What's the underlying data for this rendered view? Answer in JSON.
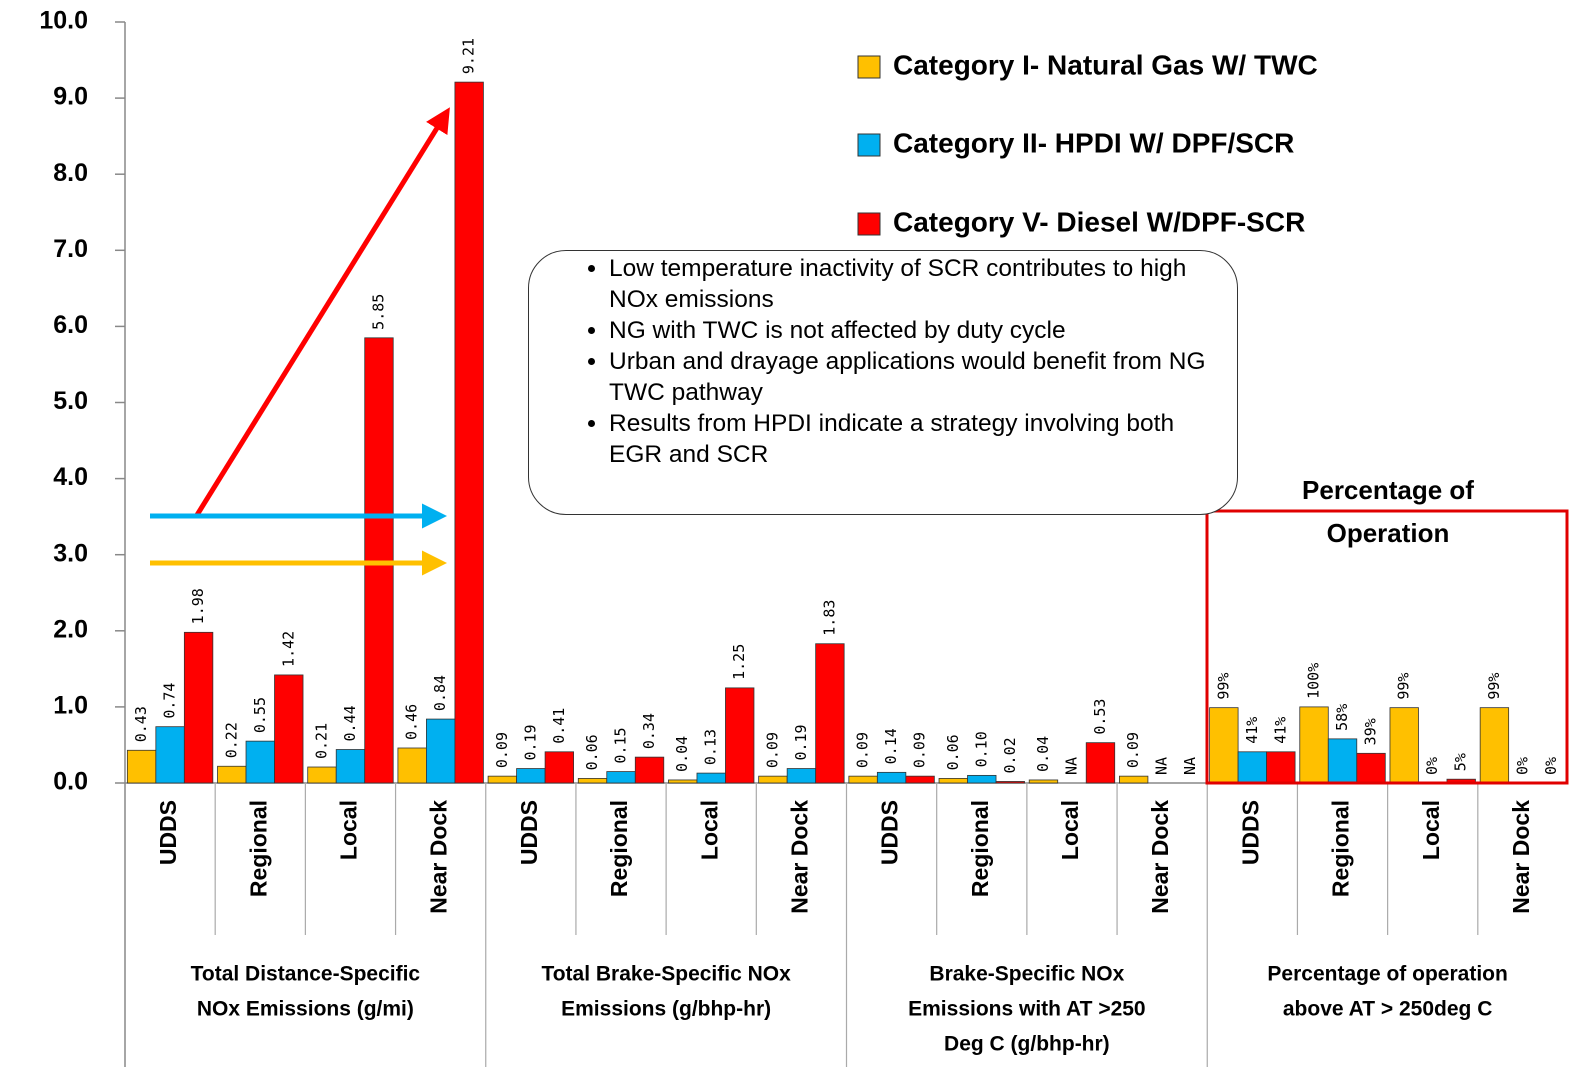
{
  "chart_data": {
    "type": "bar",
    "categories": [
      "UDDS",
      "Regional",
      "Local",
      "Near Dock",
      "UDDS",
      "Regional",
      "Local",
      "Near Dock",
      "UDDS",
      "Regional",
      "Local",
      "Near Dock",
      "UDDS",
      "Regional",
      "Local",
      "Near Dock"
    ],
    "groups": [
      {
        "lines": [
          "Total Distance-Specific",
          "NOx Emissions (g/mi)"
        ]
      },
      {
        "lines": [
          "Total Brake-Specific NOx",
          "Emissions (g/bhp-hr)"
        ]
      },
      {
        "lines": [
          "Brake-Specific NOx",
          "Emissions with AT >250",
          "Deg C (g/bhp-hr)"
        ]
      },
      {
        "lines": [
          "Percentage of operation",
          "above AT > 250deg C"
        ]
      }
    ],
    "series": [
      {
        "name": "Category I- Natural Gas W/ TWC",
        "color": "#FFC000",
        "values": [
          0.43,
          0.22,
          0.21,
          0.46,
          0.09,
          0.06,
          0.04,
          0.09,
          0.09,
          0.06,
          0.04,
          0.09,
          0.99,
          1.0,
          0.99,
          0.99
        ],
        "value_labels": [
          "0.43",
          "0.22",
          "0.21",
          "0.46",
          "0.09",
          "0.06",
          "0.04",
          "0.09",
          "0.09",
          "0.06",
          "0.04",
          "0.09",
          "99%",
          "100%",
          "99%",
          "99%"
        ]
      },
      {
        "name": "Category II- HPDI W/ DPF/SCR",
        "color": "#00B0F0",
        "values": [
          0.74,
          0.55,
          0.44,
          0.84,
          0.19,
          0.15,
          0.13,
          0.19,
          0.14,
          0.1,
          null,
          null,
          0.41,
          0.58,
          0,
          0
        ],
        "value_labels": [
          "0.74",
          "0.55",
          "0.44",
          "0.84",
          "0.19",
          "0.15",
          "0.13",
          "0.19",
          "0.14",
          "0.10",
          "NA",
          "NA",
          "41%",
          "58%",
          "0%",
          "0%"
        ]
      },
      {
        "name": "Category V- Diesel W/DPF-SCR",
        "color": "#FF0000",
        "values": [
          1.98,
          1.42,
          5.85,
          9.21,
          0.41,
          0.34,
          1.25,
          1.83,
          0.09,
          0.02,
          0.53,
          null,
          0.41,
          0.39,
          0.05,
          0
        ],
        "value_labels": [
          "1.98",
          "1.42",
          "5.85",
          "9.21",
          "0.41",
          "0.34",
          "1.25",
          "1.83",
          "0.09",
          "0.02",
          "0.53",
          "NA",
          "41%",
          "39%",
          "5%",
          "0%"
        ]
      }
    ],
    "ylim": [
      0,
      10
    ],
    "yticks": [
      {
        "value": 0,
        "label": "0.0"
      },
      {
        "value": 1,
        "label": "1.0"
      },
      {
        "value": 2,
        "label": "2.0"
      },
      {
        "value": 3,
        "label": "3.0"
      },
      {
        "value": 4,
        "label": "4.0"
      },
      {
        "value": 5,
        "label": "5.0"
      },
      {
        "value": 6,
        "label": "6.0"
      },
      {
        "value": 7,
        "label": "7.0"
      },
      {
        "value": 8,
        "label": "8.0"
      },
      {
        "value": 9,
        "label": "9.0"
      },
      {
        "value": 10,
        "label": "10.0"
      }
    ],
    "legend": "top-right",
    "highlight_label": [
      "Percentage of",
      "Operation"
    ],
    "notes": [
      "Low temperature inactivity of SCR contributes to high NOx emissions",
      "NG with TWC is not affected by duty cycle",
      "Urban and drayage applications would benefit from NG TWC pathway",
      "Results from HPDI indicate a strategy involving both EGR and SCR"
    ]
  }
}
